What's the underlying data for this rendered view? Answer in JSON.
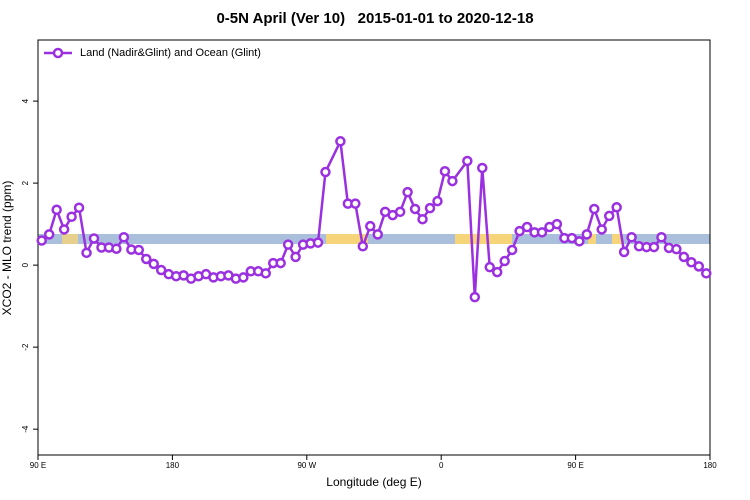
{
  "chart_data": {
    "type": "line",
    "title": "0-5N April (Ver 10)   2015-01-01 to 2020-12-18",
    "xlabel": "Longitude (deg E)",
    "ylabel": "XCO2 - MLO trend (ppm)",
    "xlim": [
      90,
      540
    ],
    "ylim": [
      -4.63,
      5.49
    ],
    "xticks": [
      {
        "value": 90,
        "label": "90 E"
      },
      180,
      {
        "value": 270,
        "label": "90 W"
      },
      {
        "value": 360,
        "label": "0"
      },
      {
        "value": 450,
        "label": "90 E"
      },
      {
        "value": 540,
        "label": "180"
      }
    ],
    "yticks": [
      -4,
      -2,
      0,
      2,
      4
    ],
    "grid": false,
    "legend": "top-left",
    "series": [
      {
        "name": "Land (Nadir&Glint) and Ocean (Glint)",
        "color": "#9b30e0",
        "x": [
          92.5,
          97.5,
          102.5,
          107.5,
          112.5,
          117.5,
          122.5,
          127.5,
          132.5,
          137.5,
          142.5,
          147.5,
          152.5,
          157.5,
          162.5,
          167.5,
          172.5,
          177.5,
          182.5,
          187.5,
          192.5,
          197.5,
          202.5,
          207.5,
          212.5,
          217.5,
          222.5,
          227.5,
          232.5,
          237.5,
          242.5,
          247.5,
          252.5,
          257.5,
          262.5,
          267.5,
          272.5,
          277.5,
          282.5,
          292.5,
          297.5,
          302.5,
          307.5,
          312.5,
          317.5,
          322.5,
          327.5,
          332.5,
          337.5,
          342.5,
          347.5,
          352.5,
          357.5,
          362.5,
          367.5,
          377.5,
          382.5,
          387.5,
          392.5,
          397.5,
          402.5,
          407.5,
          412.5,
          417.5,
          422.5,
          427.5,
          432.5,
          437.5,
          442.5,
          447.5,
          452.5,
          457.5,
          462.5,
          467.5,
          472.5,
          477.5,
          482.5,
          487.5,
          492.5,
          497.5,
          502.5,
          507.5,
          512.5,
          517.5,
          522.5,
          527.5,
          532.5,
          537.5
        ],
        "values": [
          0.6,
          0.75,
          1.35,
          0.87,
          1.18,
          1.4,
          0.3,
          0.65,
          0.43,
          0.43,
          0.4,
          0.68,
          0.38,
          0.37,
          0.15,
          0.03,
          -0.12,
          -0.22,
          -0.27,
          -0.25,
          -0.33,
          -0.27,
          -0.22,
          -0.3,
          -0.27,
          -0.25,
          -0.33,
          -0.3,
          -0.15,
          -0.15,
          -0.2,
          0.05,
          0.05,
          0.5,
          0.2,
          0.5,
          0.53,
          0.55,
          2.27,
          3.02,
          1.5,
          1.5,
          0.46,
          0.95,
          0.75,
          1.3,
          1.22,
          1.3,
          1.78,
          1.37,
          1.12,
          1.39,
          1.56,
          2.29,
          2.05,
          2.54,
          -0.78,
          2.37,
          -0.05,
          -0.17,
          0.1,
          0.37,
          0.83,
          0.93,
          0.8,
          0.8,
          0.93,
          1.0,
          0.66,
          0.66,
          0.58,
          0.75,
          1.37,
          0.87,
          1.2,
          1.41,
          0.32,
          0.68,
          0.46,
          0.44,
          0.44,
          0.68,
          0.42,
          0.39,
          0.2,
          0.07,
          -0.03,
          -0.2
        ]
      }
    ]
  }
}
